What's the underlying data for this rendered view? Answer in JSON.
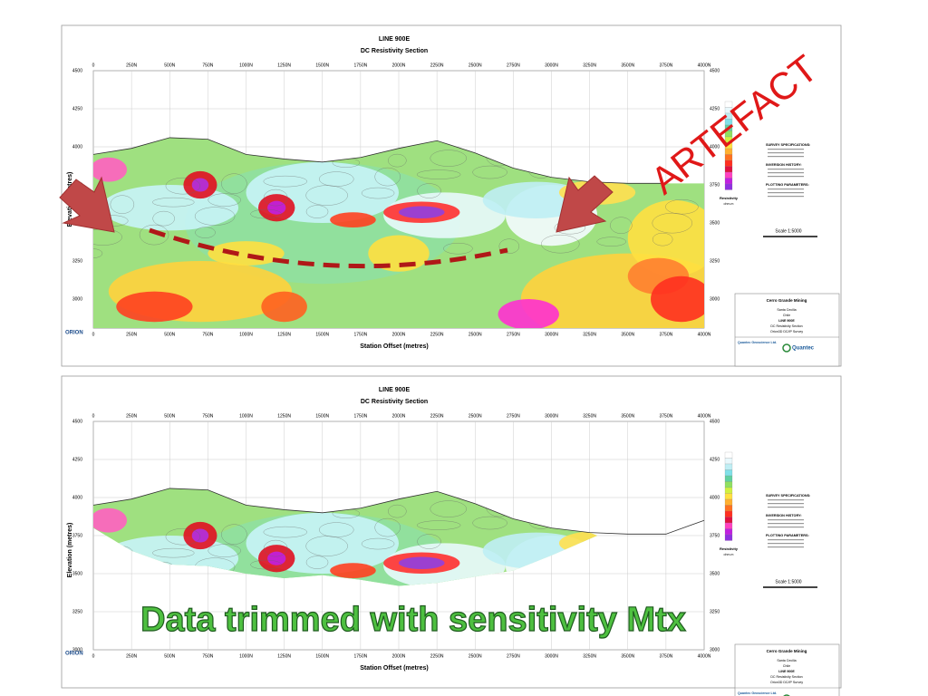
{
  "panels": [
    {
      "title": "LINE 900E",
      "subtitle": "DC Resistivity Section",
      "x_ticks": [
        "0",
        "250N",
        "500N",
        "750N",
        "1000N",
        "1250N",
        "1500N",
        "1750N",
        "2000N",
        "2250N",
        "2500N",
        "2750N",
        "3000N",
        "3250N",
        "3500N",
        "3750N",
        "4000N"
      ],
      "y_ticks": [
        "4500",
        "4250",
        "4000",
        "3750",
        "3500",
        "3250",
        "3000"
      ],
      "x_label": "Station Offset (metres)",
      "y_label": "Elevation (metres)",
      "legend_title": "Resistivity",
      "legend_unit": "ohm-m",
      "notes": [
        "SURVEY SPECIFICATIONS:",
        "INVERSION HISTORY:",
        "PLOTTING PARAMETERS:"
      ],
      "scale": "Scale 1:5000",
      "title_block": [
        "Cerro Grande Mining",
        "Santa Cecilia",
        "Chile",
        "LINE 900E",
        "DC Resistivity Section",
        "Orion3D DC/IP Survey"
      ],
      "company": "Quantec Geoscience Ltd.",
      "logo": "Quantec",
      "brand": "ORION"
    },
    {
      "title": "LINE 900E",
      "subtitle": "DC Resistivity Section",
      "x_ticks": [
        "0",
        "250N",
        "500N",
        "750N",
        "1000N",
        "1250N",
        "1500N",
        "1750N",
        "2000N",
        "2250N",
        "2500N",
        "2750N",
        "3000N",
        "3250N",
        "3500N",
        "3750N",
        "4000N"
      ],
      "y_ticks": [
        "4500",
        "4250",
        "4000",
        "3750",
        "3500",
        "3250",
        "3000"
      ],
      "x_label": "Station Offset (metres)",
      "y_label": "Elevation (metres)",
      "legend_title": "Resistivity",
      "legend_unit": "ohm-m",
      "notes": [
        "SURVEY SPECIFICATIONS:",
        "INVERSION HISTORY:",
        "PLOTTING PARAMETERS:"
      ],
      "scale": "Scale 1:5000",
      "title_block": [
        "Cerro Grande Mining",
        "Santa Cecilia",
        "Chile",
        "LINE 900E",
        "DC Resistivity Section",
        "Orion3D DC/IP Survey"
      ],
      "company": "Quantec Geoscience Ltd.",
      "logo": "Quantec",
      "brand": "ORION"
    }
  ],
  "annotations": {
    "artefact": "ARTEFACT",
    "trimmed": "Data trimmed with sensitivity Mtx"
  }
}
